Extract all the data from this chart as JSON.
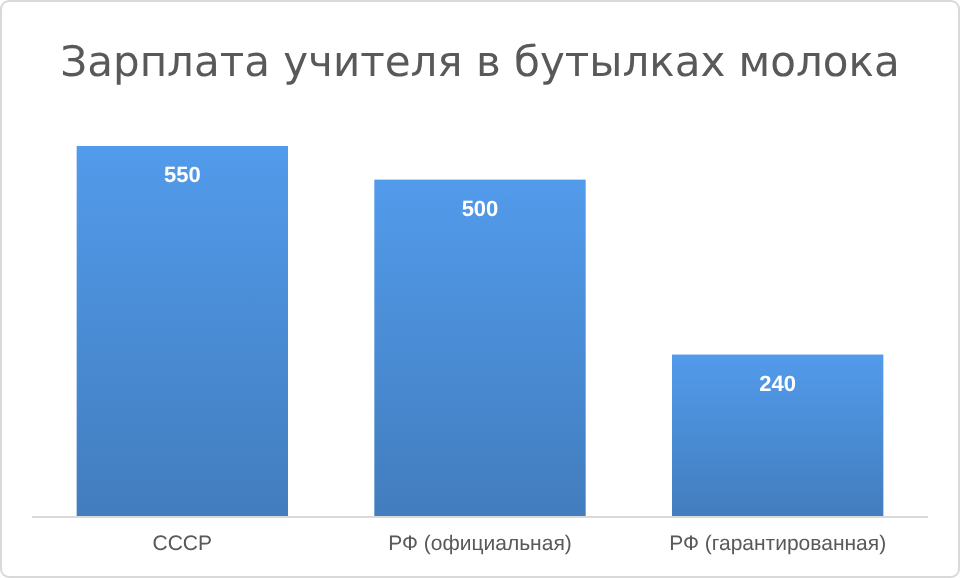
{
  "chart_data": {
    "type": "bar",
    "title": "Зарплата учителя в бутылках молока",
    "categories": [
      "СССР",
      "РФ (официальная)",
      "РФ (гарантированная)"
    ],
    "values": [
      550,
      500,
      240
    ],
    "color": "#4a8bd3",
    "data_labels": true
  }
}
